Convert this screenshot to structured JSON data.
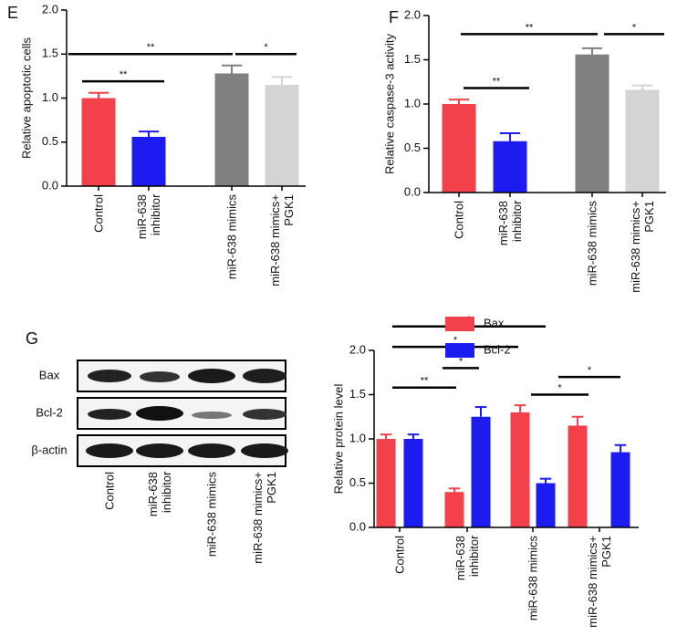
{
  "chart_data": [
    {
      "type": "bar",
      "panel": "E",
      "ylabel": "Relative apoptotic cells",
      "categories": [
        "Control",
        "miR-638\ninhibitor",
        "miR-638 mimics",
        "miR-638 mimics+\nPGK1"
      ],
      "values": [
        1.0,
        0.56,
        1.28,
        1.15
      ],
      "errors": [
        0.06,
        0.06,
        0.09,
        0.09
      ],
      "colors": [
        "#f2414a",
        "#1c1cf0",
        "#808080",
        "#d4d4d4"
      ],
      "ylim": [
        0,
        2
      ],
      "yticks": [
        {
          "value": 0,
          "label": "0.0"
        },
        0.5,
        {
          "value": 1,
          "label": "1.0"
        },
        1.5,
        {
          "value": 2,
          "label": "2.0"
        }
      ],
      "annotations": [
        {
          "text": "**",
          "y": 1.19
        },
        {
          "text": "**",
          "y": 1.5
        },
        {
          "text": "*",
          "y": 1.5
        }
      ]
    },
    {
      "type": "bar",
      "panel": "F",
      "ylabel": "Relative caspase-3 activity",
      "categories": [
        "Control",
        "miR-638\ninhibitor",
        "miR-638 mimics",
        "miR-638 mimics+\nPGK1"
      ],
      "values": [
        1.0,
        0.58,
        1.56,
        1.16
      ],
      "errors": [
        0.05,
        0.09,
        0.07,
        0.05
      ],
      "colors": [
        "#f2414a",
        "#1c1cf0",
        "#808080",
        "#d4d4d4"
      ],
      "ylim": [
        0,
        2
      ],
      "yticks": [
        {
          "value": 0,
          "label": "0.0"
        },
        0.5,
        {
          "value": 1,
          "label": "1.0"
        },
        1.5,
        {
          "value": 2,
          "label": "2.0"
        }
      ],
      "annotations": [
        {
          "text": "**",
          "y": 1.18
        },
        {
          "text": "**",
          "y": 1.79
        },
        {
          "text": "*",
          "y": 1.79
        }
      ]
    },
    {
      "type": "grouped-bar",
      "ylabel": "Relative protein level",
      "categories": [
        "Control",
        "miR-638\ninhibitor",
        "miR-638 mimics",
        "miR-638 mimics+\nPGK1"
      ],
      "series": [
        {
          "name": "Bax",
          "color": "#f2414a",
          "values": [
            1.0,
            0.4,
            1.3,
            1.15
          ],
          "errors": [
            0.05,
            0.04,
            0.08,
            0.1
          ]
        },
        {
          "name": "Bcl-2",
          "color": "#1c1cf0",
          "values": [
            1.0,
            1.25,
            0.5,
            0.85
          ],
          "errors": [
            0.05,
            0.11,
            0.05,
            0.08
          ]
        }
      ],
      "legend": "top-right",
      "ylim": [
        0,
        2
      ],
      "yticks": [
        {
          "value": 0,
          "label": "0.0"
        },
        0.5,
        {
          "value": 1,
          "label": "1.0"
        },
        1.5,
        {
          "value": 2,
          "label": "2.0"
        }
      ],
      "annotations": [
        {
          "text": "*",
          "y": 2.27
        },
        {
          "text": "*",
          "y": 2.04
        },
        {
          "text": "*",
          "y": 1.8
        },
        {
          "text": "**",
          "y": 1.58
        },
        {
          "text": "*",
          "y": 1.7
        },
        {
          "text": "*",
          "y": 1.5
        }
      ]
    }
  ],
  "blot": {
    "panel": "G",
    "rows": [
      "Bax",
      "Bcl-2",
      "β-actin"
    ],
    "lanes": [
      "Control",
      "miR-638\ninhibitor",
      "miR-638 mimics",
      "miR-638 mimics+\nPGK1"
    ]
  }
}
